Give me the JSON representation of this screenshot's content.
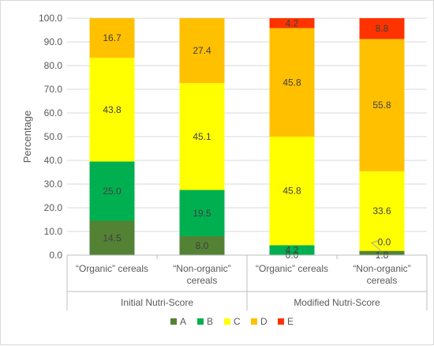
{
  "chart_data": {
    "type": "bar",
    "stacked": true,
    "title": "",
    "ylabel": "Percentage",
    "ylim": [
      0,
      100
    ],
    "yticks": [
      "0.0",
      "10.0",
      "20.0",
      "30.0",
      "40.0",
      "50.0",
      "60.0",
      "70.0",
      "80.0",
      "90.0",
      "100.0"
    ],
    "grid": true,
    "legend_position": "bottom",
    "groups": [
      {
        "label": "Initial Nutri-Score",
        "categories": [
          0,
          1
        ]
      },
      {
        "label": "Modified Nutri-Score",
        "categories": [
          2,
          3
        ]
      }
    ],
    "categories": [
      [
        "“Organic” cereals"
      ],
      [
        "“Non-organic”",
        "cereals"
      ],
      [
        "“Organic” cereals"
      ],
      [
        "“Non-organic”",
        "cereals"
      ]
    ],
    "series": [
      {
        "name": "A",
        "color": "#548235",
        "values": [
          14.5,
          8.0,
          0.0,
          1.8
        ]
      },
      {
        "name": "B",
        "color": "#00b050",
        "values": [
          25.0,
          19.5,
          4.2,
          0.0
        ]
      },
      {
        "name": "C",
        "color": "#ffff00",
        "values": [
          43.8,
          45.1,
          45.8,
          33.6
        ]
      },
      {
        "name": "D",
        "color": "#ffc000",
        "values": [
          16.7,
          27.4,
          45.8,
          55.8
        ]
      },
      {
        "name": "E",
        "color": "#ff3300",
        "values": [
          0.0,
          0.0,
          4.2,
          8.8
        ]
      }
    ],
    "data_labels": [
      [
        "14.5",
        "8.0",
        "0.0",
        "1.8"
      ],
      [
        "25.0",
        "19.5",
        "4.2",
        "0.0"
      ],
      [
        "43.8",
        "45.1",
        "45.8",
        "33.6"
      ],
      [
        "16.7",
        "27.4",
        "45.8",
        "55.8"
      ],
      [
        "",
        "",
        "4.2",
        "8.8"
      ]
    ]
  }
}
